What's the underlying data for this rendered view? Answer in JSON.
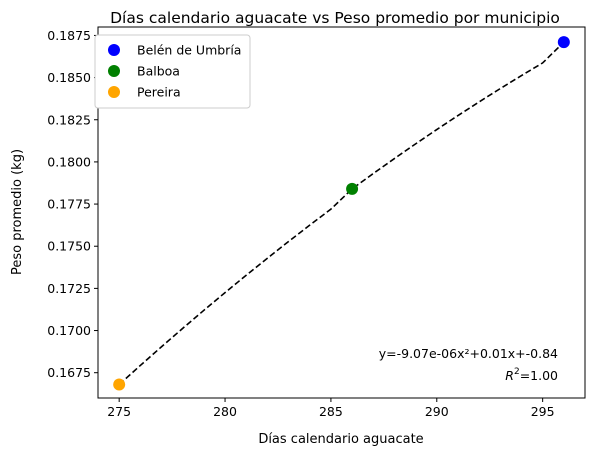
{
  "chart_data": {
    "type": "scatter",
    "title": "Días calendario aguacate vs Peso promedio por municipio",
    "xlabel": "Días calendario aguacate",
    "ylabel": "Peso promedio (kg)",
    "xlim": [
      274.0,
      297.0
    ],
    "ylim": [
      0.166,
      0.188
    ],
    "xticks": [
      275,
      280,
      285,
      290,
      295
    ],
    "xtick_labels": [
      "275",
      "280",
      "285",
      "290",
      "295"
    ],
    "yticks": [
      0.1675,
      0.17,
      0.1725,
      0.175,
      0.1775,
      0.18,
      0.1825,
      0.185,
      0.1875
    ],
    "ytick_labels": [
      "0.1675",
      "0.1700",
      "0.1725",
      "0.1750",
      "0.1775",
      "0.1800",
      "0.1825",
      "0.1850",
      "0.1875"
    ],
    "grid": false,
    "legend_position": "top-left",
    "series": [
      {
        "name": "Belén de Umbría",
        "color": "#0000ff",
        "x": [
          296
        ],
        "y": [
          0.1871
        ]
      },
      {
        "name": "Balboa",
        "color": "#008000",
        "x": [
          286
        ],
        "y": [
          0.1784
        ]
      },
      {
        "name": "Pereira",
        "color": "#ffa500",
        "x": [
          275
        ],
        "y": [
          0.1668
        ]
      }
    ],
    "trendline": {
      "style": "dashed",
      "color": "#000000",
      "x": [
        275,
        276,
        277,
        278,
        279,
        280,
        281,
        282,
        283,
        284,
        285,
        286,
        287,
        288,
        289,
        290,
        291,
        292,
        293,
        294,
        295,
        296
      ],
      "y": [
        0.1668,
        0.16793,
        0.16904,
        0.17013,
        0.1712,
        0.17225,
        0.17328,
        0.17429,
        0.17528,
        0.17625,
        0.1772,
        0.1784,
        0.17931,
        0.1802,
        0.18107,
        0.18192,
        0.18275,
        0.18356,
        0.18435,
        0.18512,
        0.18587,
        0.1871
      ]
    },
    "annotations": {
      "equation": "y=-9.07e-06x²+0.01x+-0.84",
      "r2_prefix": "R",
      "r2_sup": "2",
      "r2_value": "=1.00"
    }
  }
}
